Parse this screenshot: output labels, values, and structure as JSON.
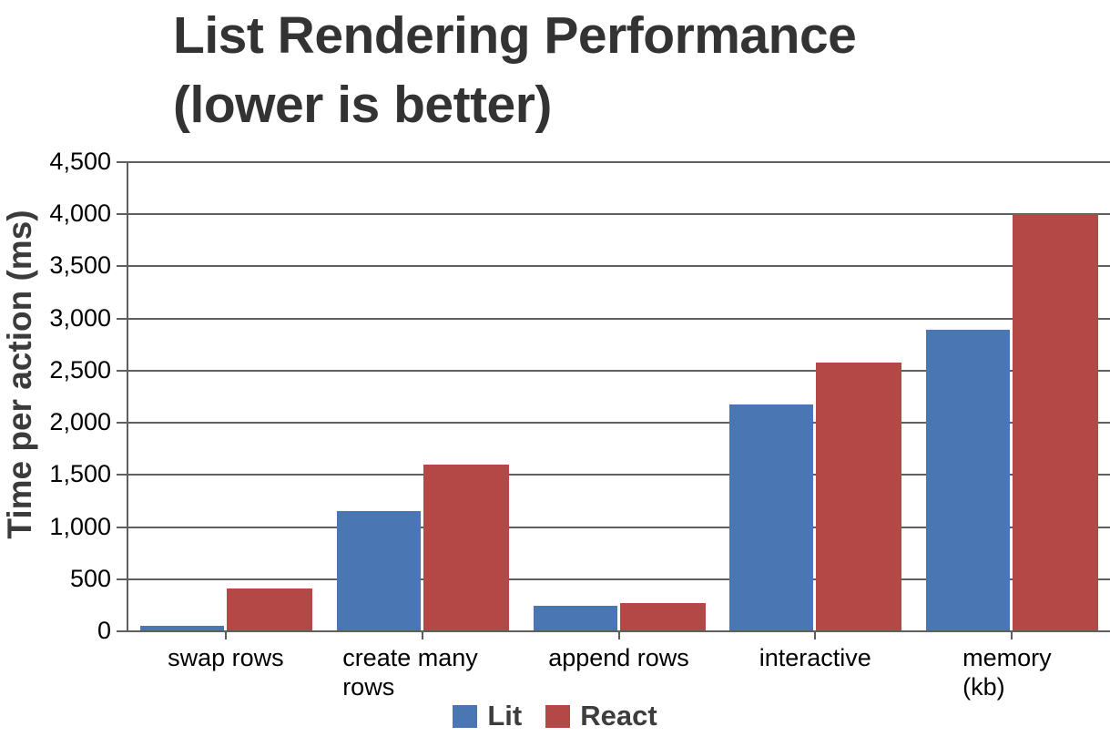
{
  "title": {
    "line1": "List Rendering Performance",
    "line2": "(lower is better)"
  },
  "chart_data": {
    "type": "bar",
    "title": "List Rendering Performance (lower is better)",
    "subtitle": "(lower is better)",
    "categories": [
      "swap rows",
      "create many rows",
      "append rows",
      "interactive",
      "memory (kb)"
    ],
    "series": [
      {
        "name": "Lit",
        "color": "#4a76b4",
        "values": [
          50,
          1155,
          245,
          2175,
          2895
        ]
      },
      {
        "name": "React",
        "color": "#b44846",
        "values": [
          415,
          1595,
          275,
          2575,
          4000
        ]
      }
    ],
    "xlabel": "",
    "ylabel": "Time per action (ms)",
    "ylim": [
      0,
      4500
    ],
    "ytick_step": 500,
    "grid": true,
    "legend_position": "bottom"
  },
  "colors": {
    "title_text": "#333333",
    "axis_and_grid": "#5f5f5f",
    "tick_label_text": "#000000",
    "legend_text": "#3d3d3d",
    "background": "#ffffff"
  }
}
